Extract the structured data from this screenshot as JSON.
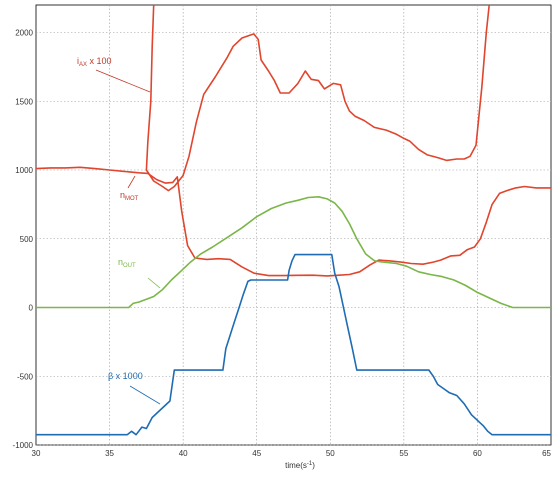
{
  "chart_data": {
    "type": "line",
    "xlabel": "time(s",
    "xlabel_sup": "-1",
    "xlabel_close": ")",
    "xlim": [
      30,
      65
    ],
    "ylim": [
      -1000,
      2200
    ],
    "grid": true,
    "x_ticks": [
      30,
      35,
      40,
      45,
      50,
      55,
      60,
      65
    ],
    "y_ticks": [
      -1000,
      -500,
      0,
      500,
      1000,
      1500,
      2000
    ],
    "series": [
      {
        "color": "#e0452e",
        "points": [
          [
            38.0,
            2200
          ],
          [
            37.9,
            1900
          ],
          [
            37.8,
            1500
          ],
          [
            37.6,
            1200
          ],
          [
            37.5,
            1000
          ],
          [
            38.0,
            920
          ],
          [
            38.6,
            880
          ],
          [
            39.0,
            850
          ],
          [
            39.4,
            880
          ],
          [
            40.0,
            960
          ],
          [
            40.4,
            1100
          ],
          [
            40.9,
            1350
          ],
          [
            41.4,
            1550
          ],
          [
            42.2,
            1680
          ],
          [
            43.0,
            1820
          ],
          [
            43.4,
            1900
          ],
          [
            44.0,
            1960
          ],
          [
            44.8,
            1990
          ],
          [
            45.1,
            1950
          ],
          [
            45.3,
            1800
          ],
          [
            45.8,
            1720
          ],
          [
            46.2,
            1650
          ],
          [
            46.6,
            1560
          ],
          [
            47.2,
            1560
          ],
          [
            47.8,
            1630
          ],
          [
            48.3,
            1720
          ],
          [
            48.7,
            1660
          ],
          [
            49.2,
            1650
          ],
          [
            49.6,
            1590
          ],
          [
            50.2,
            1630
          ],
          [
            50.7,
            1620
          ],
          [
            51.0,
            1500
          ],
          [
            51.3,
            1430
          ],
          [
            51.7,
            1390
          ],
          [
            52.3,
            1360
          ],
          [
            53.0,
            1310
          ],
          [
            53.8,
            1290
          ],
          [
            54.5,
            1260
          ],
          [
            55.0,
            1230
          ],
          [
            55.4,
            1210
          ],
          [
            56.0,
            1150
          ],
          [
            56.6,
            1110
          ],
          [
            57.3,
            1090
          ],
          [
            57.9,
            1070
          ],
          [
            58.6,
            1080
          ],
          [
            59.1,
            1080
          ],
          [
            59.5,
            1100
          ],
          [
            59.9,
            1180
          ],
          [
            60.3,
            1600
          ],
          [
            60.6,
            2000
          ],
          [
            60.8,
            2200
          ]
        ]
      },
      {
        "color": "#e0452e",
        "points": [
          [
            30,
            1010
          ],
          [
            31,
            1015
          ],
          [
            32,
            1015
          ],
          [
            33,
            1020
          ],
          [
            34,
            1010
          ],
          [
            35,
            1000
          ],
          [
            36,
            990
          ],
          [
            37,
            980
          ],
          [
            37.6,
            975
          ],
          [
            38.2,
            930
          ],
          [
            38.8,
            905
          ],
          [
            39.3,
            910
          ],
          [
            39.6,
            950
          ],
          [
            39.9,
            700
          ],
          [
            40.3,
            450
          ],
          [
            40.8,
            360
          ],
          [
            41.6,
            350
          ],
          [
            42.4,
            355
          ],
          [
            43.2,
            350
          ],
          [
            44.0,
            295
          ],
          [
            44.8,
            250
          ],
          [
            45.8,
            232
          ],
          [
            46.8,
            232
          ],
          [
            47.8,
            234
          ],
          [
            48.8,
            235
          ],
          [
            49.8,
            230
          ],
          [
            50.6,
            235
          ],
          [
            51.3,
            240
          ],
          [
            52.0,
            260
          ],
          [
            52.7,
            310
          ],
          [
            53.3,
            345
          ],
          [
            54.0,
            340
          ],
          [
            54.8,
            330
          ],
          [
            55.5,
            320
          ],
          [
            56.3,
            315
          ],
          [
            57.0,
            330
          ],
          [
            57.5,
            345
          ],
          [
            58.2,
            375
          ],
          [
            58.8,
            380
          ],
          [
            59.3,
            420
          ],
          [
            59.8,
            440
          ],
          [
            60.2,
            500
          ],
          [
            60.6,
            620
          ],
          [
            61.0,
            750
          ],
          [
            61.5,
            830
          ],
          [
            62.0,
            850
          ],
          [
            62.6,
            870
          ],
          [
            63.2,
            880
          ],
          [
            64.0,
            870
          ],
          [
            65,
            870
          ]
        ]
      },
      {
        "color": "#7ab648",
        "points": [
          [
            30,
            0
          ],
          [
            33,
            0
          ],
          [
            36.3,
            0
          ],
          [
            36.6,
            30
          ],
          [
            37.0,
            40
          ],
          [
            37.5,
            60
          ],
          [
            38.0,
            80
          ],
          [
            38.6,
            130
          ],
          [
            39.2,
            200
          ],
          [
            39.8,
            260
          ],
          [
            40.5,
            330
          ],
          [
            41.2,
            390
          ],
          [
            42.0,
            440
          ],
          [
            43.0,
            510
          ],
          [
            44.0,
            580
          ],
          [
            45.0,
            660
          ],
          [
            46.0,
            720
          ],
          [
            47.0,
            760
          ],
          [
            47.8,
            780
          ],
          [
            48.5,
            800
          ],
          [
            49.2,
            805
          ],
          [
            49.8,
            790
          ],
          [
            50.3,
            760
          ],
          [
            50.8,
            700
          ],
          [
            51.3,
            610
          ],
          [
            51.8,
            500
          ],
          [
            52.4,
            390
          ],
          [
            53.0,
            340
          ],
          [
            53.6,
            330
          ],
          [
            54.5,
            320
          ],
          [
            55.2,
            300
          ],
          [
            56.0,
            260
          ],
          [
            56.8,
            240
          ],
          [
            57.6,
            225
          ],
          [
            58.4,
            200
          ],
          [
            59.2,
            160
          ],
          [
            60.0,
            110
          ],
          [
            60.8,
            70
          ],
          [
            61.6,
            30
          ],
          [
            62.4,
            0
          ],
          [
            65,
            0
          ]
        ]
      },
      {
        "color": "#1f6cb4",
        "points": [
          [
            30,
            -925
          ],
          [
            32,
            -925
          ],
          [
            34,
            -925
          ],
          [
            36.2,
            -925
          ],
          [
            36.5,
            -900
          ],
          [
            36.8,
            -925
          ],
          [
            37.2,
            -870
          ],
          [
            37.5,
            -880
          ],
          [
            37.9,
            -800
          ],
          [
            38.3,
            -760
          ],
          [
            38.7,
            -720
          ],
          [
            39.1,
            -680
          ],
          [
            39.4,
            -455
          ],
          [
            40.5,
            -455
          ],
          [
            41.6,
            -455
          ],
          [
            42.7,
            -455
          ],
          [
            42.9,
            -300
          ],
          [
            43.2,
            -200
          ],
          [
            43.5,
            -100
          ],
          [
            43.8,
            0
          ],
          [
            44.1,
            100
          ],
          [
            44.4,
            190
          ],
          [
            44.6,
            200
          ],
          [
            45.6,
            200
          ],
          [
            46.6,
            200
          ],
          [
            47.1,
            200
          ],
          [
            47.2,
            270
          ],
          [
            47.4,
            340
          ],
          [
            47.6,
            385
          ],
          [
            49.0,
            385
          ],
          [
            50.1,
            385
          ],
          [
            50.3,
            250
          ],
          [
            50.6,
            150
          ],
          [
            50.9,
            0
          ],
          [
            51.2,
            -150
          ],
          [
            51.5,
            -300
          ],
          [
            51.8,
            -455
          ],
          [
            53.5,
            -455
          ],
          [
            55.0,
            -455
          ],
          [
            56.7,
            -455
          ],
          [
            57.0,
            -500
          ],
          [
            57.3,
            -560
          ],
          [
            57.7,
            -590
          ],
          [
            58.1,
            -620
          ],
          [
            58.6,
            -640
          ],
          [
            59.1,
            -700
          ],
          [
            59.6,
            -780
          ],
          [
            60.0,
            -820
          ],
          [
            60.4,
            -860
          ],
          [
            60.7,
            -900
          ],
          [
            61.0,
            -925
          ],
          [
            62,
            -925
          ],
          [
            63,
            -925
          ],
          [
            64,
            -925
          ],
          [
            65,
            -925
          ]
        ]
      }
    ],
    "annotations": {
      "iax": {
        "main": "i",
        "sub": "AX",
        "rest": " x 100"
      },
      "nmot": {
        "main": "n",
        "sub": "MOT"
      },
      "nout": {
        "main": "n",
        "sub": "OUT"
      },
      "beta": {
        "main": "β x 1000"
      }
    }
  }
}
